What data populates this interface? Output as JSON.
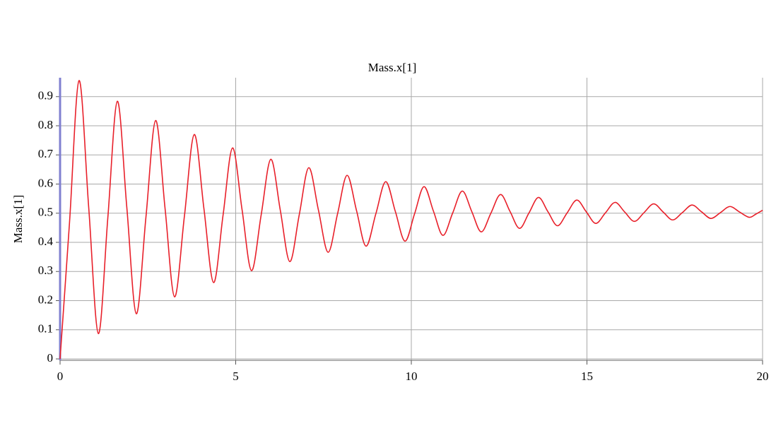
{
  "chart_data": {
    "type": "line",
    "title": "Mass.x[1]",
    "y_label": "Mass.x[1]",
    "x": [
      0,
      0.27,
      0.54,
      0.815,
      1.09,
      1.36,
      1.63,
      1.9,
      2.17,
      2.445,
      2.72,
      2.99,
      3.26,
      3.54,
      3.82,
      4.095,
      4.37,
      4.64,
      4.91,
      5.18,
      5.45,
      5.725,
      6.0,
      6.27,
      6.54,
      6.81,
      7.08,
      7.355,
      7.63,
      7.9,
      8.17,
      8.44,
      8.71,
      8.99,
      9.27,
      9.545,
      9.82,
      10.09,
      10.36,
      10.63,
      10.9,
      11.175,
      11.45,
      11.72,
      11.99,
      12.265,
      12.54,
      12.81,
      13.08,
      13.35,
      13.62,
      13.89,
      14.16,
      14.435,
      14.71,
      14.98,
      15.25,
      15.525,
      15.8,
      16.075,
      16.35,
      16.625,
      16.9,
      17.17,
      17.44,
      17.715,
      17.99,
      18.26,
      18.53,
      18.8,
      19.07,
      19.345,
      19.62,
      19.81,
      20
    ],
    "series": [
      {
        "name": "Mass.x[1]",
        "color": "#e8202a",
        "values": [
          0,
          0.47,
          0.955,
          0.52,
          0.087,
          0.485,
          0.884,
          0.52,
          0.155,
          0.487,
          0.818,
          0.515,
          0.213,
          0.49,
          0.77,
          0.516,
          0.262,
          0.493,
          0.724,
          0.513,
          0.303,
          0.494,
          0.685,
          0.51,
          0.334,
          0.495,
          0.656,
          0.511,
          0.366,
          0.498,
          0.63,
          0.509,
          0.387,
          0.498,
          0.608,
          0.506,
          0.404,
          0.497,
          0.591,
          0.507,
          0.424,
          0.5,
          0.576,
          0.506,
          0.436,
          0.5,
          0.564,
          0.506,
          0.448,
          0.501,
          0.554,
          0.505,
          0.457,
          0.501,
          0.545,
          0.505,
          0.465,
          0.501,
          0.537,
          0.504,
          0.472,
          0.502,
          0.532,
          0.504,
          0.477,
          0.502,
          0.528,
          0.505,
          0.482,
          0.502,
          0.523,
          0.504,
          0.486,
          0.497,
          0.51
        ]
      }
    ],
    "xlim": [
      0,
      20
    ],
    "xticks": [
      0,
      5,
      10,
      15,
      20
    ],
    "ylim": [
      0,
      0.96
    ],
    "yticks": [
      0,
      0.1,
      0.2,
      0.3,
      0.4,
      0.5,
      0.6,
      0.7,
      0.8,
      0.9
    ],
    "grid": true
  }
}
